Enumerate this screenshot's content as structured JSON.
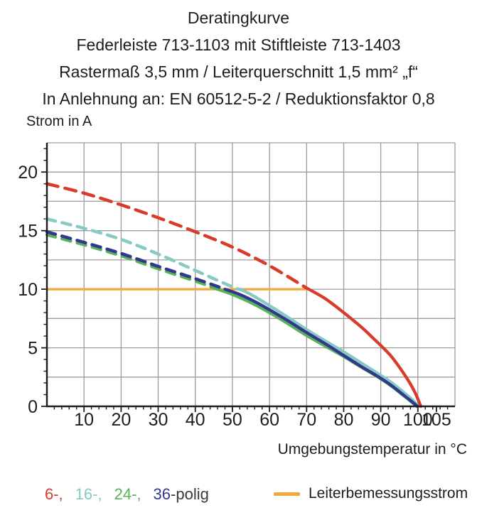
{
  "titles": [
    "Deratingkurve",
    "Federleiste 713-1103 mit Stiftleiste 713-1403",
    "Rastermaß 3,5 mm / Leiterquerschnitt 1,5 mm² „f“",
    "In Anlehnung an: EN 60512-5-2 / Reduktionsfaktor 0,8"
  ],
  "axes": {
    "y_title": "Strom in A",
    "x_title": "Umgebungstemperatur in °C"
  },
  "legend": {
    "poles": [
      {
        "label": "6-,",
        "color": "#d93b2b"
      },
      {
        "label": "16-,",
        "color": "#87c9c5"
      },
      {
        "label": "24-,",
        "color": "#58b25a"
      },
      {
        "label": "36",
        "color": "#33388e"
      }
    ],
    "pole_suffix": "-polig",
    "rated": {
      "label": "Leiterbemessungsstrom",
      "color": "#f0a73e"
    }
  },
  "chart_data": {
    "type": "line",
    "title": "Deratingkurve",
    "xlabel": "Umgebungstemperatur in °C",
    "ylabel": "Strom in A",
    "xlim": [
      0,
      110
    ],
    "ylim": [
      0,
      22.5
    ],
    "x_major_ticks": [
      10,
      20,
      30,
      40,
      50,
      60,
      70,
      80,
      90,
      100,
      105
    ],
    "x_grid_step": 10,
    "x_minor_step": 2,
    "y_major_ticks": [
      0,
      5,
      10,
      15,
      20
    ],
    "y_grid_step": 2.5,
    "y_minor_step": 1,
    "grid": true,
    "grid_color": "#9c9c9c",
    "axis_color": "#1c1c1c",
    "legend_position": "bottom",
    "series": [
      {
        "name": "6-polig",
        "color": "#d93b2b",
        "style": "dashed-then-solid",
        "dash": "16 10",
        "dashed_points": [
          [
            0,
            19.0
          ],
          [
            10,
            18.2
          ],
          [
            20,
            17.2
          ],
          [
            30,
            16.1
          ],
          [
            40,
            14.9
          ],
          [
            50,
            13.6
          ],
          [
            60,
            12.0
          ],
          [
            70,
            10.1
          ]
        ],
        "solid_points": [
          [
            70,
            10.1
          ],
          [
            75,
            9.2
          ],
          [
            80,
            8.0
          ],
          [
            85,
            6.7
          ],
          [
            88,
            5.8
          ],
          [
            90,
            5.2
          ],
          [
            93,
            4.2
          ],
          [
            96,
            2.9
          ],
          [
            98,
            1.9
          ],
          [
            99.5,
            1.0
          ],
          [
            100.8,
            0
          ]
        ]
      },
      {
        "name": "16-polig",
        "color": "#87c9c5",
        "style": "dashed-then-solid",
        "dash": "12.5 9.5",
        "dashed_points": [
          [
            0,
            16.0
          ],
          [
            10,
            15.2
          ],
          [
            20,
            14.25
          ],
          [
            30,
            13.0
          ],
          [
            40,
            11.6
          ],
          [
            50,
            10.2
          ],
          [
            52,
            10.0
          ]
        ],
        "solid_points": [
          [
            52,
            10.0
          ],
          [
            55,
            9.55
          ],
          [
            60,
            8.6
          ],
          [
            65,
            7.6
          ],
          [
            70,
            6.55
          ],
          [
            75,
            5.6
          ],
          [
            80,
            4.65
          ],
          [
            85,
            3.65
          ],
          [
            90,
            2.65
          ],
          [
            93,
            2.0
          ],
          [
            96,
            1.25
          ],
          [
            98,
            0.7
          ],
          [
            100.3,
            0
          ]
        ]
      },
      {
        "name": "24-polig",
        "color": "#58b25a",
        "style": "dashed-then-solid",
        "dash": "12.5 9.5",
        "dashed_points": [
          [
            0,
            14.65
          ],
          [
            10,
            13.8
          ],
          [
            20,
            12.85
          ],
          [
            30,
            11.75
          ],
          [
            40,
            10.7
          ],
          [
            46,
            10.0
          ]
        ],
        "solid_points": [
          [
            46,
            10.0
          ],
          [
            50,
            9.55
          ],
          [
            55,
            8.85
          ],
          [
            60,
            8.0
          ],
          [
            65,
            7.05
          ],
          [
            70,
            6.05
          ],
          [
            75,
            5.15
          ],
          [
            80,
            4.25
          ],
          [
            85,
            3.3
          ],
          [
            90,
            2.35
          ],
          [
            93,
            1.7
          ],
          [
            96,
            0.95
          ],
          [
            98,
            0.45
          ],
          [
            99.7,
            0
          ]
        ]
      },
      {
        "name": "36-polig",
        "color": "#33388e",
        "style": "dashed-then-solid",
        "dash": "12.5 9.5",
        "dashed_points": [
          [
            0,
            14.9
          ],
          [
            10,
            14.0
          ],
          [
            20,
            13.05
          ],
          [
            30,
            11.95
          ],
          [
            40,
            10.9
          ],
          [
            48,
            10.0
          ]
        ],
        "solid_points": [
          [
            48,
            10.0
          ],
          [
            52,
            9.55
          ],
          [
            56,
            8.95
          ],
          [
            60,
            8.25
          ],
          [
            65,
            7.3
          ],
          [
            70,
            6.3
          ],
          [
            75,
            5.35
          ],
          [
            80,
            4.35
          ],
          [
            85,
            3.35
          ],
          [
            90,
            2.4
          ],
          [
            93,
            1.75
          ],
          [
            96,
            1.0
          ],
          [
            98,
            0.5
          ],
          [
            99.9,
            0
          ]
        ]
      },
      {
        "name": "Leiterbemessungsstrom",
        "color": "#f0a73e",
        "style": "solid",
        "solid_points": [
          [
            0,
            10.0
          ],
          [
            70.5,
            10.0
          ]
        ]
      }
    ],
    "draw_order": [
      4,
      1,
      2,
      3,
      0
    ]
  }
}
